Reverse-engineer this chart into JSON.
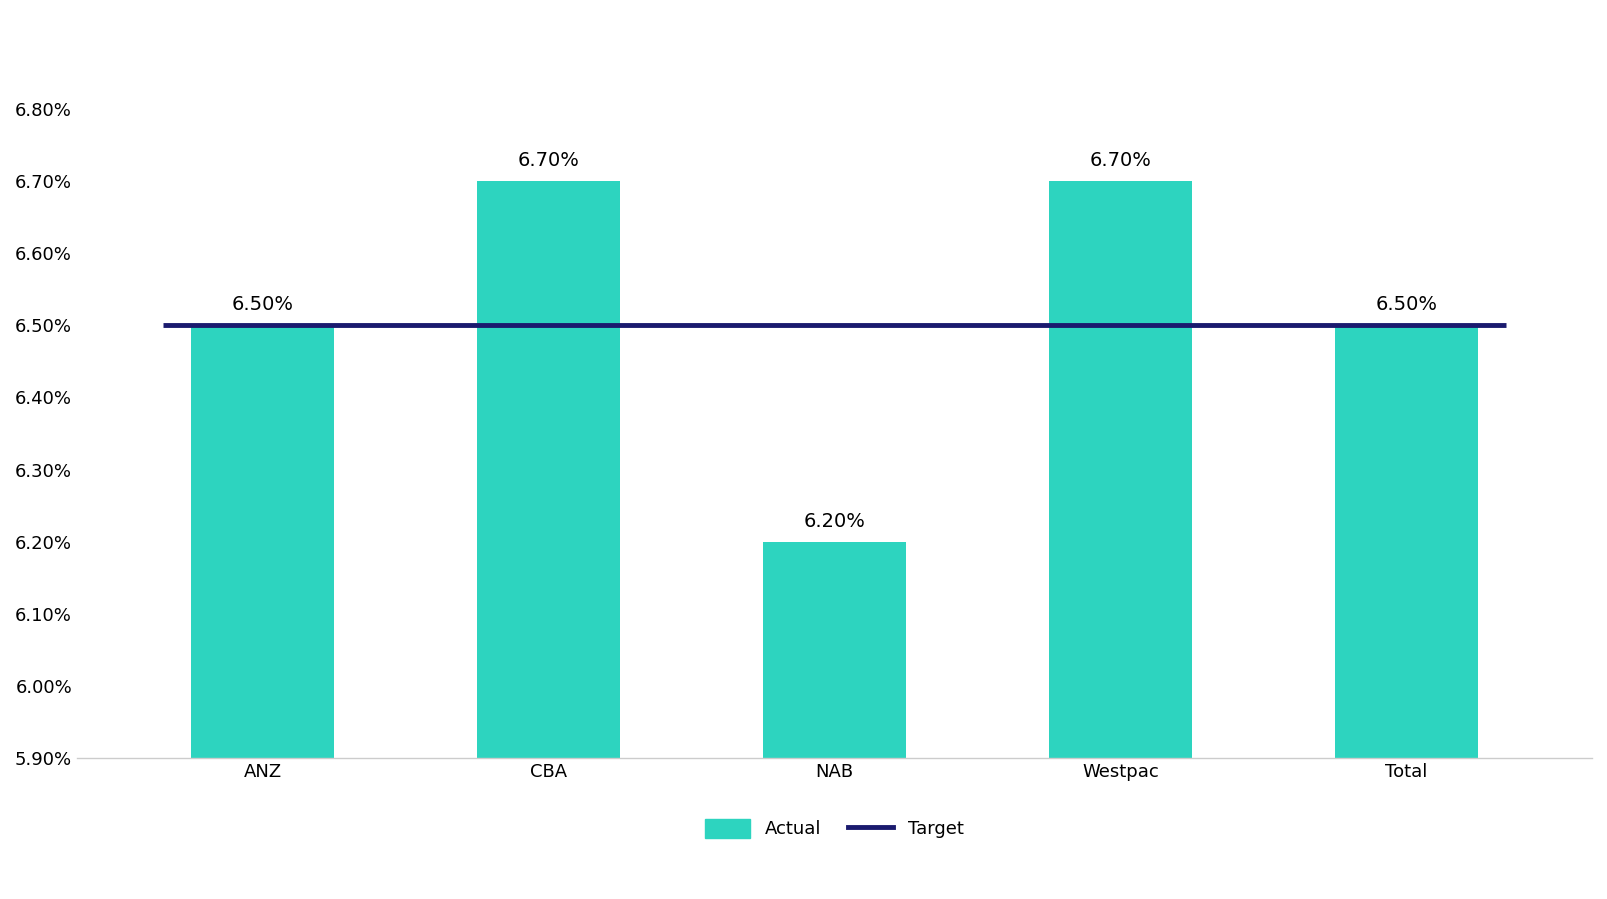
{
  "categories": [
    "ANZ",
    "CBA",
    "NAB",
    "Westpac",
    "Total"
  ],
  "values": [
    0.065,
    0.067,
    0.062,
    0.067,
    0.065
  ],
  "bar_color": "#2DD4BF",
  "target_value": 0.065,
  "target_color": "#1a1a6e",
  "target_linewidth": 3.5,
  "ylim_min": 0.059,
  "ylim_max": 0.0693,
  "ytick_labels": [
    "5.90%",
    "6.00%",
    "6.10%",
    "6.20%",
    "6.30%",
    "6.40%",
    "6.50%",
    "6.60%",
    "6.70%",
    "6.80%"
  ],
  "ytick_values": [
    0.059,
    0.06,
    0.061,
    0.062,
    0.063,
    0.064,
    0.065,
    0.066,
    0.067,
    0.068
  ],
  "bar_width": 0.5,
  "background_color": "#ffffff",
  "label_fontsize": 14,
  "tick_fontsize": 13,
  "legend_fontsize": 13,
  "bar_labels": [
    "6.50%",
    "6.70%",
    "6.20%",
    "6.70%",
    "6.50%"
  ],
  "legend_actual": "Actual",
  "legend_target": "Target",
  "spine_color": "#cccccc"
}
